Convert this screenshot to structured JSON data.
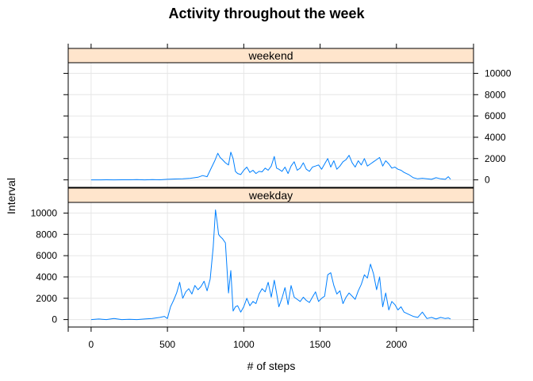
{
  "chart_data": {
    "type": "line",
    "title": "Activity throughout the week",
    "xlabel": "# of steps",
    "ylabel": "Interval",
    "xlim": [
      -150,
      2505
    ],
    "ylim": [
      -700,
      11000
    ],
    "xticks": [
      0,
      500,
      1000,
      1500,
      2000
    ],
    "yticks": [
      0,
      2000,
      4000,
      6000,
      8000,
      10000
    ],
    "grid": true,
    "line_color": "#0080ff",
    "strip_color": "#ffe5cc",
    "panels": [
      {
        "name": "weekend",
        "x": [
          0,
          50,
          100,
          150,
          200,
          250,
          300,
          350,
          400,
          450,
          500,
          550,
          600,
          650,
          700,
          730,
          760,
          790,
          810,
          830,
          845,
          860,
          880,
          900,
          915,
          930,
          945,
          960,
          980,
          1000,
          1020,
          1040,
          1060,
          1080,
          1100,
          1120,
          1140,
          1160,
          1180,
          1200,
          1215,
          1230,
          1250,
          1270,
          1290,
          1310,
          1330,
          1350,
          1370,
          1390,
          1410,
          1430,
          1450,
          1470,
          1490,
          1510,
          1530,
          1550,
          1570,
          1590,
          1610,
          1630,
          1650,
          1670,
          1690,
          1710,
          1730,
          1750,
          1770,
          1790,
          1810,
          1830,
          1850,
          1870,
          1890,
          1910,
          1930,
          1950,
          1970,
          1990,
          2010,
          2030,
          2050,
          2080,
          2110,
          2140,
          2170,
          2200,
          2230,
          2260,
          2290,
          2320,
          2340,
          2355
        ],
        "y": [
          0,
          0,
          10,
          0,
          10,
          5,
          20,
          0,
          30,
          10,
          50,
          80,
          100,
          150,
          250,
          400,
          300,
          1200,
          1800,
          2500,
          2100,
          1900,
          1600,
          1400,
          2600,
          2000,
          800,
          600,
          500,
          900,
          1200,
          700,
          900,
          600,
          800,
          750,
          1100,
          900,
          1300,
          2200,
          1100,
          1000,
          800,
          1200,
          600,
          1300,
          1700,
          900,
          1100,
          1600,
          1000,
          800,
          1200,
          1300,
          1400,
          1000,
          1500,
          2000,
          1200,
          1800,
          1000,
          1300,
          1700,
          1900,
          2300,
          1600,
          1200,
          1800,
          1400,
          2000,
          1300,
          1500,
          1700,
          1900,
          2100,
          1300,
          1800,
          1500,
          1100,
          1200,
          1000,
          900,
          700,
          500,
          200,
          100,
          150,
          100,
          50,
          200,
          100,
          50,
          300,
          50
        ]
      },
      {
        "name": "weekday",
        "x": [
          0,
          50,
          100,
          150,
          200,
          250,
          300,
          350,
          400,
          450,
          480,
          500,
          520,
          540,
          560,
          580,
          600,
          620,
          640,
          660,
          680,
          700,
          720,
          740,
          760,
          780,
          800,
          815,
          825,
          835,
          845,
          860,
          880,
          900,
          915,
          930,
          945,
          960,
          980,
          1000,
          1020,
          1040,
          1060,
          1080,
          1100,
          1120,
          1140,
          1160,
          1180,
          1200,
          1215,
          1230,
          1250,
          1270,
          1290,
          1310,
          1330,
          1350,
          1370,
          1390,
          1410,
          1430,
          1450,
          1470,
          1490,
          1510,
          1530,
          1550,
          1570,
          1590,
          1610,
          1630,
          1650,
          1670,
          1690,
          1710,
          1730,
          1750,
          1770,
          1790,
          1810,
          1830,
          1850,
          1870,
          1890,
          1910,
          1930,
          1950,
          1970,
          1990,
          2010,
          2030,
          2050,
          2080,
          2110,
          2140,
          2170,
          2200,
          2230,
          2260,
          2290,
          2320,
          2340,
          2355
        ],
        "y": [
          0,
          50,
          0,
          100,
          0,
          30,
          0,
          50,
          100,
          200,
          300,
          100,
          1200,
          1800,
          2500,
          3500,
          2000,
          2600,
          2900,
          2400,
          3200,
          2800,
          3100,
          3600,
          2700,
          3800,
          6800,
          10300,
          9200,
          8000,
          7800,
          7600,
          7200,
          2500,
          4600,
          800,
          1200,
          1300,
          700,
          1200,
          2000,
          1300,
          1700,
          1500,
          2400,
          2900,
          2600,
          3500,
          2100,
          3700,
          2500,
          1200,
          2000,
          3000,
          1400,
          3200,
          2100,
          1900,
          1700,
          2100,
          1800,
          1600,
          2100,
          2600,
          1700,
          2000,
          2200,
          4200,
          4400,
          3200,
          2400,
          2700,
          1500,
          2100,
          2500,
          2200,
          1900,
          2700,
          3300,
          4200,
          3900,
          5200,
          4300,
          2800,
          4000,
          1200,
          2500,
          900,
          1700,
          1400,
          900,
          1200,
          700,
          500,
          300,
          200,
          700,
          100,
          200,
          50,
          200,
          100,
          150,
          50
        ]
      }
    ]
  }
}
